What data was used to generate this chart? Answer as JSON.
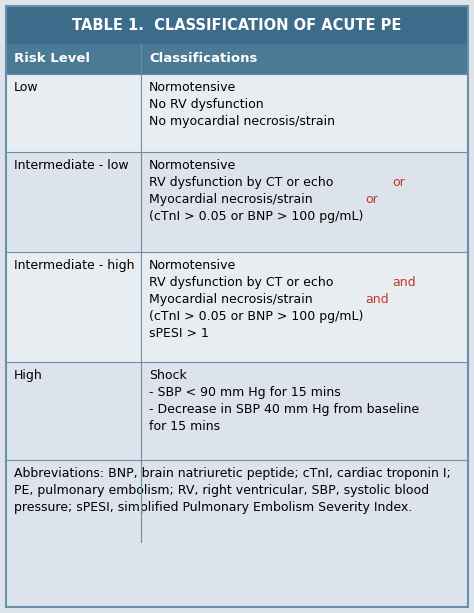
{
  "title": "TABLE 1.  CLASSIFICATION OF ACUTE PE",
  "title_bg": "#3d6b8a",
  "title_color": "#ffffff",
  "header_bg": "#4a7a96",
  "header_color": "#ffffff",
  "row_bg_even": "#dce3ea",
  "row_bg_odd": "#e8edf2",
  "border_color": "#6a8fa8",
  "footer_bg": "#dce3ea",
  "col1_header": "Risk Level",
  "col2_header": "Classifications",
  "red_color": "#c0392b",
  "rows": [
    {
      "risk": "Low",
      "lines": [
        [
          [
            "Normotensive",
            "black"
          ]
        ],
        [
          [
            "No RV dysfunction",
            "black"
          ]
        ],
        [
          [
            "No myocardial necrosis/strain",
            "black"
          ]
        ]
      ]
    },
    {
      "risk": "Intermediate - low",
      "lines": [
        [
          [
            "Normotensive",
            "black"
          ]
        ],
        [
          [
            "RV dysfunction by CT or echo ",
            "black"
          ],
          [
            "or",
            "red"
          ]
        ],
        [
          [
            "Myocardial necrosis/strain ",
            "black"
          ],
          [
            "or",
            "red"
          ]
        ],
        [
          [
            "(cTnI > 0.05 or BNP > 100 pg/mL)",
            "black"
          ]
        ]
      ]
    },
    {
      "risk": "Intermediate - high",
      "lines": [
        [
          [
            "Normotensive",
            "black"
          ]
        ],
        [
          [
            "RV dysfunction by CT or echo ",
            "black"
          ],
          [
            "and",
            "red"
          ]
        ],
        [
          [
            "Myocardial necrosis/strain ",
            "black"
          ],
          [
            "and",
            "red"
          ]
        ],
        [
          [
            "(cTnI > 0.05 or BNP > 100 pg/mL)",
            "black"
          ]
        ],
        [
          [
            "sPESI > 1",
            "black"
          ]
        ]
      ]
    },
    {
      "risk": "High",
      "lines": [
        [
          [
            "Shock",
            "black"
          ]
        ],
        [
          [
            "- SBP < 90 mm Hg for 15 mins",
            "black"
          ]
        ],
        [
          [
            "- Decrease in SBP 40 mm Hg from baseline",
            "black"
          ]
        ],
        [
          [
            "for 15 mins",
            "black"
          ]
        ]
      ]
    }
  ],
  "footer_lines": [
    "Abbreviations: BNP, brain natriuretic peptide; cTnI, cardiac troponin I;",
    "PE, pulmonary embolism; RV, right ventricular, SBP, systolic blood",
    "pressure; sPESI, simplified Pulmonary Embolism Severity Index."
  ],
  "fontsize": 9.0,
  "title_fontsize": 10.5,
  "header_fontsize": 9.5,
  "footer_fontsize": 9.0
}
